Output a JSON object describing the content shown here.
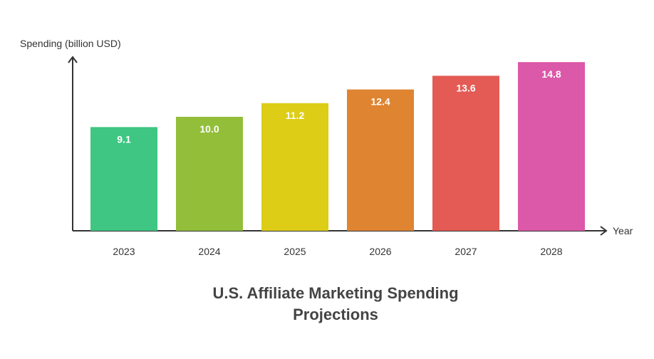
{
  "chart_data": {
    "type": "bar",
    "title_lines": [
      "U.S. Affiliate Marketing Spending",
      "Projections"
    ],
    "ylabel": "Spending (billion USD)",
    "xlabel": "Year",
    "categories": [
      "2023",
      "2024",
      "2025",
      "2026",
      "2027",
      "2028"
    ],
    "values": [
      9.1,
      10.0,
      11.2,
      12.4,
      13.6,
      14.8
    ],
    "value_labels": [
      "9.1",
      "10.0",
      "11.2",
      "12.4",
      "13.6",
      "14.8"
    ],
    "colors": [
      "#3ec682",
      "#93be3a",
      "#ddcd17",
      "#df8431",
      "#e45a54",
      "#dc58a8"
    ],
    "ylim": [
      0,
      15.0
    ],
    "grid": false,
    "legend": "none"
  }
}
